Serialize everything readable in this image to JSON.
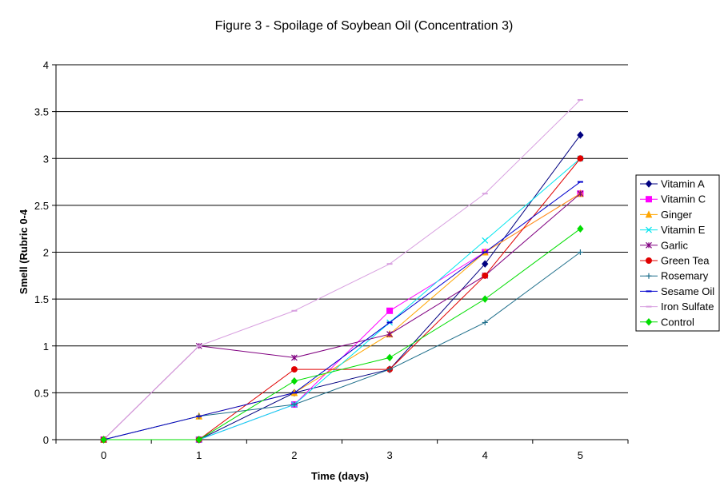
{
  "chart_data": {
    "type": "line",
    "title": "Figure 3 - Spoilage of Soybean Oil (Concentration 3)",
    "xlabel": "Time (days)",
    "ylabel": "Smell (Rubric 0-4",
    "x": [
      0,
      1,
      2,
      3,
      4,
      5
    ],
    "x_tick_labels": [
      "0",
      "1",
      "2",
      "3",
      "4",
      "5"
    ],
    "ylim": [
      0,
      4
    ],
    "y_tick_labels": [
      "0",
      "0.5",
      "1",
      "1.5",
      "2",
      "2.5",
      "3",
      "3.5",
      "4"
    ],
    "grid": "horizontal",
    "legend_position": "right",
    "series": [
      {
        "name": "Vitamin A",
        "color": "#000080",
        "marker": "diamond",
        "values": [
          0,
          0,
          0.5,
          0.75,
          1.875,
          3.25
        ]
      },
      {
        "name": "Vitamin C",
        "color": "#ff00ff",
        "marker": "square",
        "values": [
          0,
          0,
          0.375,
          1.375,
          2.0,
          2.625
        ]
      },
      {
        "name": "Ginger",
        "color": "#ffa500",
        "marker": "triangle",
        "values": [
          0,
          0.25,
          0.5,
          1.125,
          2.0,
          2.625
        ]
      },
      {
        "name": "Vitamin E",
        "color": "#00e5ee",
        "marker": "x",
        "values": [
          0,
          0,
          0.375,
          1.25,
          2.125,
          3.0
        ]
      },
      {
        "name": "Garlic",
        "color": "#800080",
        "marker": "star",
        "values": [
          0,
          1.0,
          0.875,
          1.125,
          1.75,
          2.625
        ]
      },
      {
        "name": "Green Tea",
        "color": "#e00000",
        "marker": "circle",
        "values": [
          0,
          0,
          0.75,
          0.75,
          1.75,
          3.0
        ]
      },
      {
        "name": "Rosemary",
        "color": "#1f6f8b",
        "marker": "plus",
        "values": [
          0,
          0.25,
          0.375,
          0.75,
          1.25,
          2.0
        ]
      },
      {
        "name": "Sesame Oil",
        "color": "#0000cd",
        "marker": "dash",
        "values": [
          0,
          0.25,
          0.5,
          1.25,
          2.0,
          2.75
        ]
      },
      {
        "name": "Iron Sulfate",
        "color": "#d8a0e0",
        "marker": "dash",
        "values": [
          0,
          1.0,
          1.375,
          1.875,
          2.625,
          3.625
        ]
      },
      {
        "name": "Control",
        "color": "#00dd00",
        "marker": "diamond",
        "values": [
          0,
          0,
          0.625,
          0.875,
          1.5,
          2.25
        ]
      }
    ]
  }
}
